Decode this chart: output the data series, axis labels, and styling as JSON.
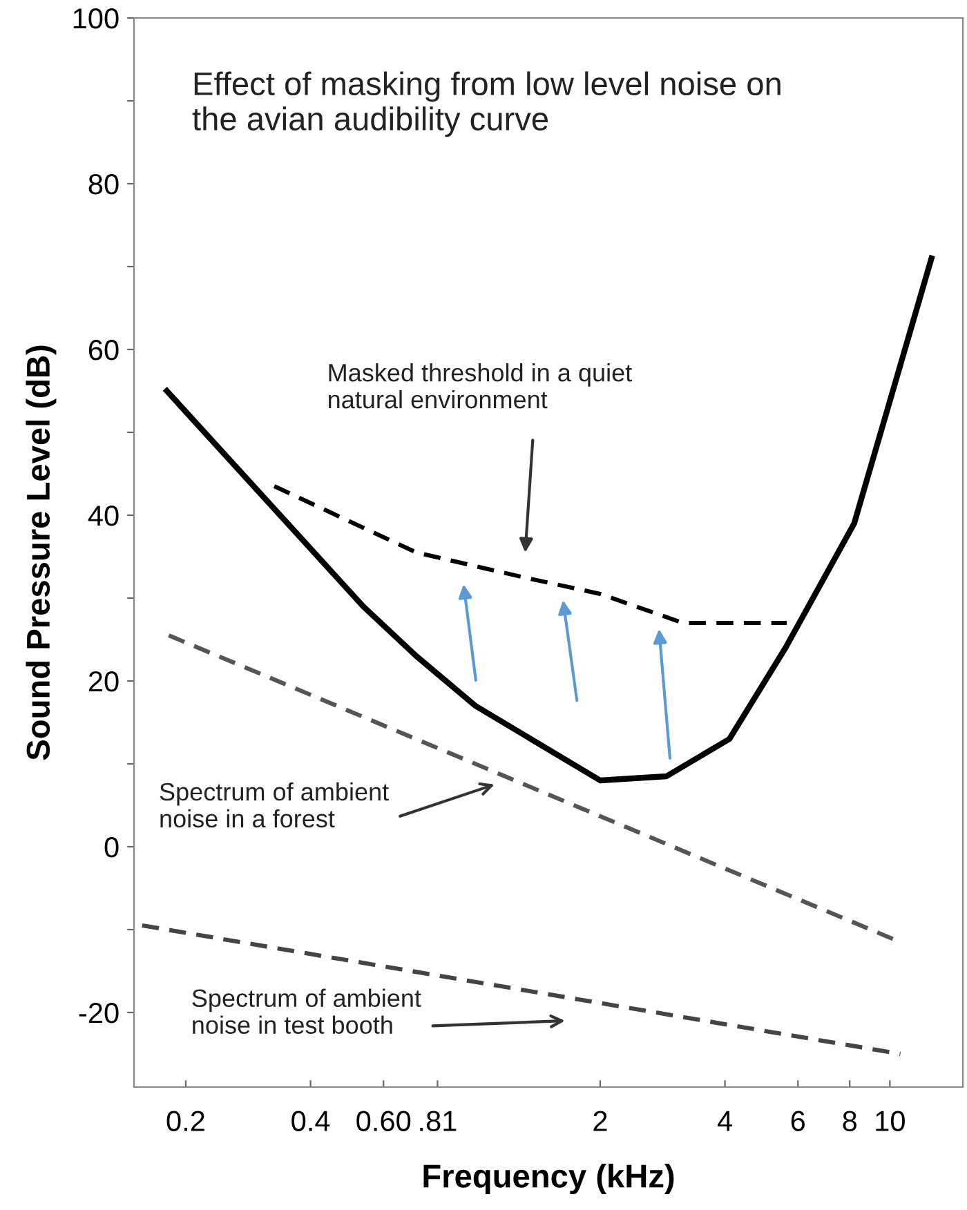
{
  "chart_data": {
    "type": "line",
    "title": "Effect of masking from low level noise on\nthe avian audibility curve",
    "xlabel": "Frequency (kHz)",
    "ylabel": "Sound Pressure Level (dB)",
    "log": "x",
    "grid": false,
    "legend": false,
    "marker": "none",
    "xlim": [
      0.15,
      15
    ],
    "xticks": [
      0.2,
      0.4,
      {
        "value": 0.6,
        "label": "0.60"
      },
      {
        "value": 0.81,
        "label": ".81"
      },
      2,
      4,
      6,
      8,
      10
    ],
    "ylim": [
      -29,
      100
    ],
    "yticks": [
      -20,
      {
        "value": -10,
        "label": null
      },
      0,
      {
        "value": 10,
        "label": null
      },
      20,
      {
        "value": 30,
        "label": null
      },
      40,
      {
        "value": 50,
        "label": null
      },
      60,
      {
        "value": 70,
        "label": null
      },
      80,
      {
        "value": 90,
        "label": null
      },
      100
    ],
    "series": [
      {
        "color": "#000000",
        "line_style": "solid",
        "x": [
          0.18,
          0.536,
          0.72,
          1.0,
          2.0,
          2.89,
          4.1,
          5.6,
          8.2,
          12.6
        ],
        "values": [
          55,
          29,
          23,
          17,
          8,
          8.5,
          13,
          24,
          39,
          71
        ]
      },
      {
        "color": "#000000",
        "line_style": "dashed",
        "x": [
          0.327,
          0.72,
          1.31,
          2.0,
          3.17,
          5.64
        ],
        "values": [
          43.5,
          35.5,
          32.5,
          30.5,
          27,
          27
        ]
      },
      {
        "color": "#555555",
        "line_style": "dashed",
        "x": [
          0.182,
          10.6
        ],
        "values": [
          25.5,
          -11.5
        ]
      },
      {
        "color": "#444444",
        "line_style": "dashed",
        "x": [
          0.157,
          10.6
        ],
        "values": [
          -9.5,
          -25
        ]
      }
    ],
    "annotations": [
      "Masked threshold in a quiet\nnatural environment",
      "Spectrum of ambient\nnoise in a forest",
      "Spectrum of ambient\nnoise in test booth"
    ]
  }
}
